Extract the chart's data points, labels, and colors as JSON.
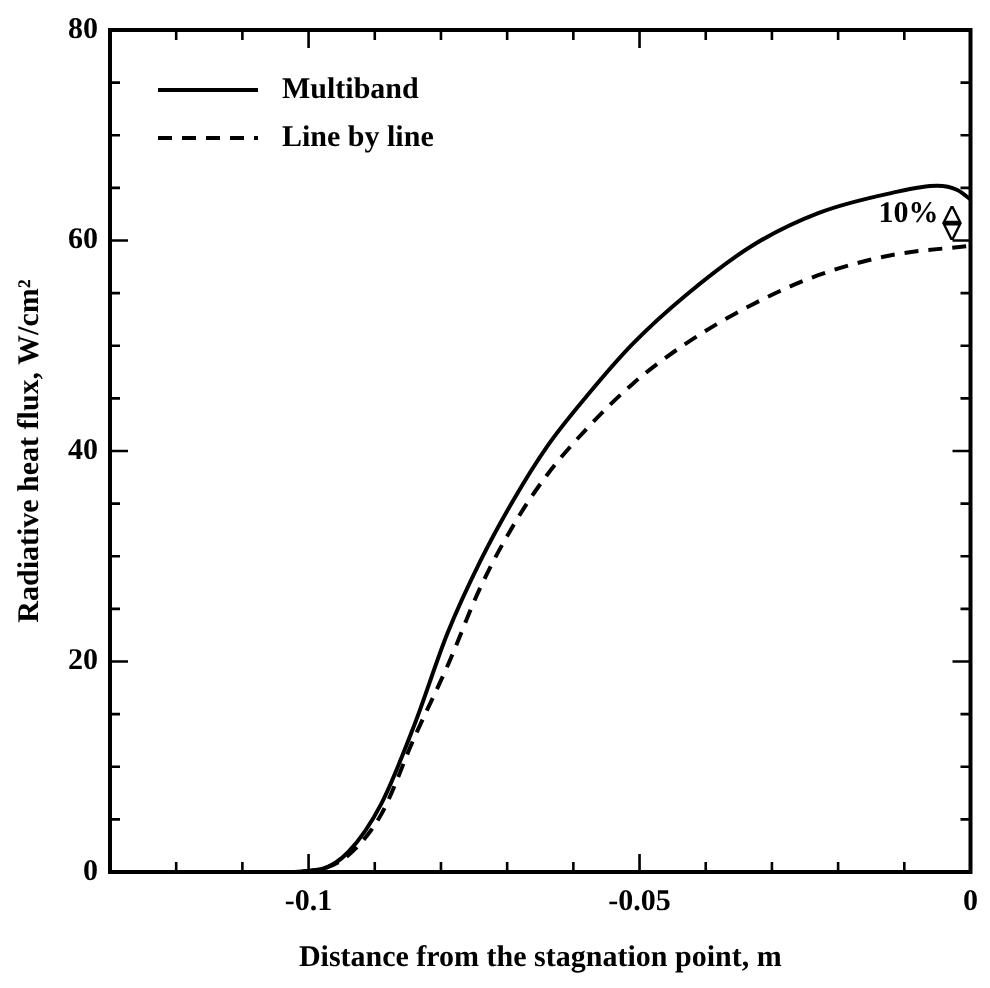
{
  "chart_data": {
    "type": "line",
    "xlabel": "Distance from the stagnation point, m",
    "ylabel": "Radiative heat flux, W/cm²",
    "xlim": [
      -0.13,
      0
    ],
    "ylim": [
      0,
      80
    ],
    "xticks": [
      {
        "value": -0.13,
        "label": null
      },
      {
        "value": -0.12,
        "label": null
      },
      {
        "value": -0.11,
        "label": null
      },
      -0.1,
      {
        "value": -0.09,
        "label": null
      },
      {
        "value": -0.08,
        "label": null
      },
      {
        "value": -0.07,
        "label": null
      },
      {
        "value": -0.06,
        "label": null
      },
      -0.05,
      {
        "value": -0.04,
        "label": null
      },
      {
        "value": -0.03,
        "label": null
      },
      {
        "value": -0.02,
        "label": null
      },
      {
        "value": -0.01,
        "label": null
      },
      0
    ],
    "yticks": [
      0,
      {
        "value": 5,
        "label": null
      },
      {
        "value": 10,
        "label": null
      },
      {
        "value": 15,
        "label": null
      },
      20,
      {
        "value": 25,
        "label": null
      },
      {
        "value": 30,
        "label": null
      },
      {
        "value": 35,
        "label": null
      },
      40,
      {
        "value": 45,
        "label": null
      },
      {
        "value": 50,
        "label": null
      },
      {
        "value": 55,
        "label": null
      },
      60,
      {
        "value": 65,
        "label": null
      },
      {
        "value": 70,
        "label": null
      },
      {
        "value": 75,
        "label": null
      },
      80
    ],
    "grid": false,
    "legend": "top left",
    "marker": "none",
    "series": [
      {
        "name": "Multiband",
        "color": "#000000",
        "line_style": "solid",
        "x": [
          -0.13,
          -0.104,
          -0.098,
          -0.094,
          -0.089,
          -0.084,
          -0.079,
          -0.074,
          -0.069,
          -0.064,
          -0.058,
          -0.051,
          -0.043,
          -0.033,
          -0.023,
          -0.012,
          -0.005,
          -0.002,
          0
        ],
        "values": [
          0,
          0,
          0.3,
          1.9,
          6.5,
          14,
          22.7,
          29.6,
          35.4,
          40.4,
          45.2,
          50.2,
          54.8,
          59.5,
          62.6,
          64.5,
          65.2,
          64.8,
          63.9
        ]
      },
      {
        "name": "Line by line",
        "color": "#000000",
        "line_style": "dashed",
        "x": [
          -0.13,
          -0.104,
          -0.098,
          -0.094,
          -0.089,
          -0.084,
          -0.079,
          -0.074,
          -0.069,
          -0.064,
          -0.058,
          -0.051,
          -0.043,
          -0.033,
          -0.023,
          -0.012,
          0
        ],
        "values": [
          0,
          0,
          0.3,
          1.6,
          5.5,
          12.8,
          19.6,
          27.1,
          33,
          37.7,
          42.1,
          46.4,
          50.2,
          53.9,
          56.7,
          58.6,
          59.5
        ]
      }
    ],
    "annotations": [
      "10%"
    ]
  }
}
